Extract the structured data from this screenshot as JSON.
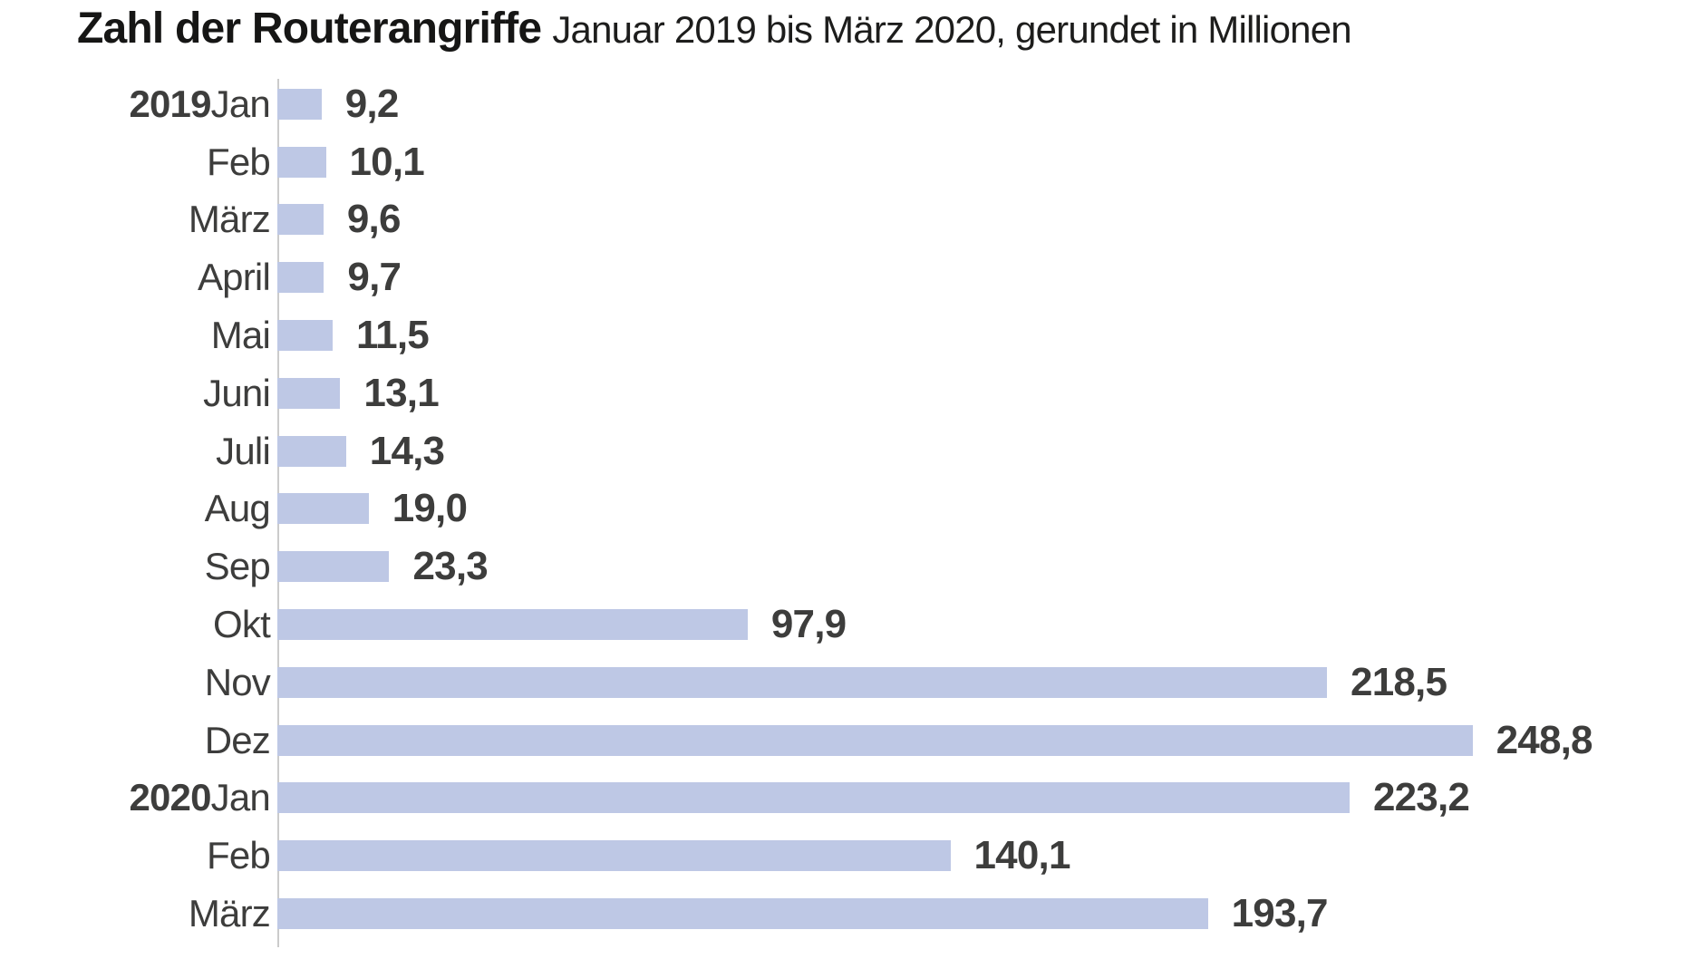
{
  "header": {
    "title": "Zahl der Routerangriffe",
    "subtitle": "Januar 2019 bis März 2020, gerundet in Millionen"
  },
  "chart_data": {
    "type": "bar",
    "orientation": "horizontal",
    "title": "Zahl der Routerangriffe",
    "subtitle": "Januar 2019 bis März 2020, gerundet in Millionen",
    "unit": "Millionen",
    "xlim": [
      0,
      260
    ],
    "grid": false,
    "legend": false,
    "categories": [
      "Jan",
      "Feb",
      "März",
      "April",
      "Mai",
      "Juni",
      "Juli",
      "Aug",
      "Sep",
      "Okt",
      "Nov",
      "Dez",
      "Jan",
      "Feb",
      "März"
    ],
    "year_markers": {
      "0": "2019",
      "12": "2020"
    },
    "values": [
      9.2,
      10.1,
      9.6,
      9.7,
      11.5,
      13.1,
      14.3,
      19.0,
      23.3,
      97.9,
      218.5,
      248.8,
      223.2,
      140.1,
      193.7
    ],
    "value_labels": [
      "9,2",
      "10,1",
      "9,6",
      "9,7",
      "11,5",
      "13,1",
      "14,3",
      "19,0",
      "23,3",
      "97,9",
      "218,5",
      "248,8",
      "223,2",
      "140,1",
      "193,7"
    ],
    "colors": {
      "bar": "#bec8e5",
      "axis": "#cbcbcb",
      "label": "#3d3d3c",
      "title": "#161615"
    }
  }
}
